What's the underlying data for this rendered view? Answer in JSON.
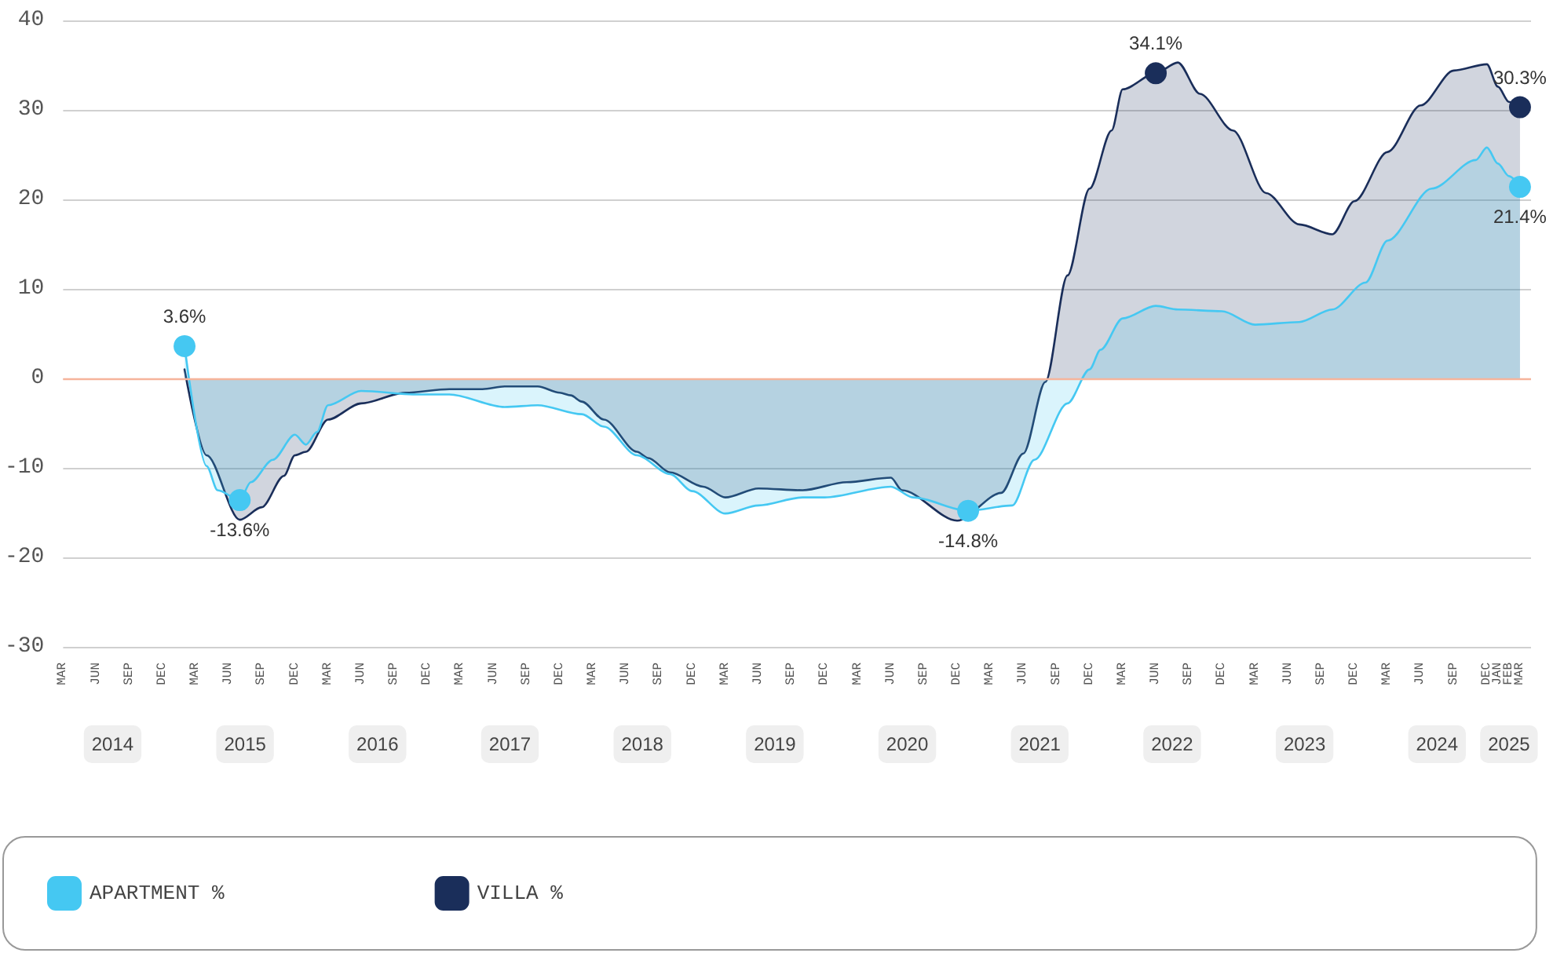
{
  "chart_data": {
    "type": "area",
    "ylim": [
      -30,
      40
    ],
    "yticks": [
      -30,
      -20,
      -10,
      0,
      10,
      20,
      30,
      40
    ],
    "grid": "y",
    "legend": "bottom",
    "xlim": [
      "2014-03",
      "2025-04"
    ],
    "xticks": [
      {
        "value": "2014-03",
        "label": "MAR"
      },
      {
        "value": "2014-06",
        "label": "JUN"
      },
      {
        "value": "2014-09",
        "label": "SEP"
      },
      {
        "value": "2014-12",
        "label": "DEC"
      },
      {
        "value": "2015-03",
        "label": "MAR"
      },
      {
        "value": "2015-06",
        "label": "JUN"
      },
      {
        "value": "2015-09",
        "label": "SEP"
      },
      {
        "value": "2015-12",
        "label": "DEC"
      },
      {
        "value": "2016-03",
        "label": "MAR"
      },
      {
        "value": "2016-06",
        "label": "JUN"
      },
      {
        "value": "2016-09",
        "label": "SEP"
      },
      {
        "value": "2016-12",
        "label": "DEC"
      },
      {
        "value": "2017-03",
        "label": "MAR"
      },
      {
        "value": "2017-06",
        "label": "JUN"
      },
      {
        "value": "2017-09",
        "label": "SEP"
      },
      {
        "value": "2017-12",
        "label": "DEC"
      },
      {
        "value": "2018-03",
        "label": "MAR"
      },
      {
        "value": "2018-06",
        "label": "JUN"
      },
      {
        "value": "2018-09",
        "label": "SEP"
      },
      {
        "value": "2018-12",
        "label": "DEC"
      },
      {
        "value": "2019-03",
        "label": "MAR"
      },
      {
        "value": "2019-06",
        "label": "JUN"
      },
      {
        "value": "2019-09",
        "label": "SEP"
      },
      {
        "value": "2019-12",
        "label": "DEC"
      },
      {
        "value": "2020-03",
        "label": "MAR"
      },
      {
        "value": "2020-06",
        "label": "JUN"
      },
      {
        "value": "2020-09",
        "label": "SEP"
      },
      {
        "value": "2020-12",
        "label": "DEC"
      },
      {
        "value": "2021-03",
        "label": "MAR"
      },
      {
        "value": "2021-06",
        "label": "JUN"
      },
      {
        "value": "2021-09",
        "label": "SEP"
      },
      {
        "value": "2021-12",
        "label": "DEC"
      },
      {
        "value": "2022-03",
        "label": "MAR"
      },
      {
        "value": "2022-06",
        "label": "JUN"
      },
      {
        "value": "2022-09",
        "label": "SEP"
      },
      {
        "value": "2022-12",
        "label": "DEC"
      },
      {
        "value": "2023-03",
        "label": "MAR"
      },
      {
        "value": "2023-06",
        "label": "JUN"
      },
      {
        "value": "2023-09",
        "label": "SEP"
      },
      {
        "value": "2023-12",
        "label": "DEC"
      },
      {
        "value": "2024-03",
        "label": "MAR"
      },
      {
        "value": "2024-06",
        "label": "JUN"
      },
      {
        "value": "2024-09",
        "label": "SEP"
      },
      {
        "value": "2024-12",
        "label": "DEC"
      },
      {
        "value": "2025-01",
        "label": "JAN"
      },
      {
        "value": "2025-02",
        "label": "FEB"
      },
      {
        "value": "2025-03",
        "label": "MAR"
      }
    ],
    "x2lim": [
      "2014-03",
      "2025-04"
    ],
    "x2ticks": [
      {
        "value": "2014-07-16",
        "label": "2014"
      },
      {
        "value": "2015-07-16",
        "label": "2015"
      },
      {
        "value": "2016-07-16",
        "label": "2016"
      },
      {
        "value": "2017-07-16",
        "label": "2017"
      },
      {
        "value": "2018-07-16",
        "label": "2018"
      },
      {
        "value": "2019-07-16",
        "label": "2019"
      },
      {
        "value": "2020-07-16",
        "label": "2020"
      },
      {
        "value": "2021-07-16",
        "label": "2021"
      },
      {
        "value": "2022-07-16",
        "label": "2022"
      },
      {
        "value": "2023-07-16",
        "label": "2023"
      },
      {
        "value": "2024-07-16",
        "label": "2024"
      },
      {
        "value": "2025-02",
        "label": "2025"
      }
    ],
    "ref_lines": [
      {
        "axis": "y",
        "value": 0,
        "color": "#f6b49b"
      }
    ],
    "series": [
      {
        "name": "APARTMENT %",
        "color": "#45c8f2",
        "x": [
          "2015-02",
          "2015-04",
          "2015-05",
          "2015-07",
          "2015-08",
          "2015-10",
          "2015-12",
          "2016-01",
          "2016-02",
          "2016-03",
          "2016-06",
          "2016-11",
          "2017-02",
          "2017-07",
          "2017-10",
          "2018-02",
          "2018-04",
          "2018-07",
          "2018-10",
          "2018-12",
          "2019-03",
          "2019-06",
          "2019-10",
          "2019-12",
          "2020-06",
          "2020-08",
          "2021-01",
          "2021-05",
          "2021-07",
          "2021-10",
          "2021-12",
          "2022-01",
          "2022-03",
          "2022-06",
          "2022-08",
          "2022-12",
          "2023-03",
          "2023-07",
          "2023-10",
          "2024-01",
          "2024-03",
          "2024-07",
          "2024-11",
          "2024-12",
          "2025-01",
          "2025-02",
          "2025-03"
        ],
        "values": [
          3.6,
          -9.8,
          -12.5,
          -13.6,
          -11.6,
          -9.1,
          -6.3,
          -7.4,
          -6,
          -3,
          -1.4,
          -1.8,
          -1.8,
          -3.2,
          -3,
          -4,
          -5.4,
          -8.6,
          -10.7,
          -12.6,
          -15.1,
          -14.2,
          -13.3,
          -13.3,
          -12.1,
          -13.3,
          -14.8,
          -14.2,
          -9.1,
          -2.8,
          1,
          3.2,
          6.7,
          8.1,
          7.7,
          7.5,
          6,
          6.3,
          7.7,
          10.7,
          15.4,
          21.2,
          24.4,
          25.8,
          24,
          22.6,
          21.4
        ],
        "value_labels": [
          "3.6%",
          null,
          null,
          "-13.6%",
          null,
          null,
          null,
          null,
          null,
          null,
          null,
          null,
          null,
          null,
          null,
          null,
          null,
          null,
          null,
          null,
          null,
          null,
          null,
          null,
          null,
          null,
          "-14.8%",
          null,
          null,
          null,
          null,
          null,
          null,
          null,
          null,
          null,
          null,
          null,
          null,
          null,
          null,
          null,
          null,
          null,
          null,
          null,
          "21.4%"
        ]
      },
      {
        "name": "VILLA %",
        "color": "#1a2e5a",
        "x": [
          "2015-02",
          "2015-04",
          "2015-07",
          "2015-09",
          "2015-11",
          "2015-12",
          "2016-01",
          "2016-03",
          "2016-06",
          "2016-10",
          "2017-02",
          "2017-05",
          "2017-07",
          "2017-10",
          "2017-12",
          "2018-01",
          "2018-02",
          "2018-04",
          "2018-07",
          "2018-08",
          "2018-10",
          "2019-01",
          "2019-03",
          "2019-06",
          "2019-10",
          "2020-02",
          "2020-06",
          "2020-07",
          "2020-12",
          "2021-04",
          "2021-06",
          "2021-08",
          "2021-10",
          "2021-12",
          "2022-02",
          "2022-03",
          "2022-06",
          "2022-08",
          "2022-10",
          "2023-01",
          "2023-04",
          "2023-07",
          "2023-10",
          "2023-12",
          "2024-03",
          "2024-06",
          "2024-09",
          "2024-12",
          "2025-01",
          "2025-02",
          "2025-03"
        ],
        "values": [
          1,
          -8.6,
          -15.8,
          -14.4,
          -10.9,
          -8.6,
          -8.2,
          -4.6,
          -2.8,
          -1.6,
          -1.2,
          -1.2,
          -0.9,
          -0.9,
          -1.6,
          -1.9,
          -2.6,
          -4.6,
          -8.2,
          -8.9,
          -10.5,
          -12.1,
          -13.3,
          -12.3,
          -12.5,
          -11.6,
          -11.1,
          -12.5,
          -15.9,
          -12.8,
          -8.4,
          -0.4,
          11.5,
          21.2,
          27.7,
          32.3,
          34.1,
          35.3,
          31.8,
          27.7,
          20.7,
          17.2,
          16.1,
          19.8,
          25.3,
          30.5,
          34.4,
          35.1,
          32.6,
          30.9,
          30.3
        ],
        "value_labels": [
          null,
          null,
          null,
          null,
          null,
          null,
          null,
          null,
          null,
          null,
          null,
          null,
          null,
          null,
          null,
          null,
          null,
          null,
          null,
          null,
          null,
          null,
          null,
          null,
          null,
          null,
          null,
          null,
          null,
          null,
          null,
          null,
          null,
          null,
          null,
          null,
          "34.1%",
          null,
          null,
          null,
          null,
          null,
          null,
          null,
          null,
          null,
          null,
          null,
          null,
          null,
          "30.3%"
        ]
      }
    ]
  }
}
